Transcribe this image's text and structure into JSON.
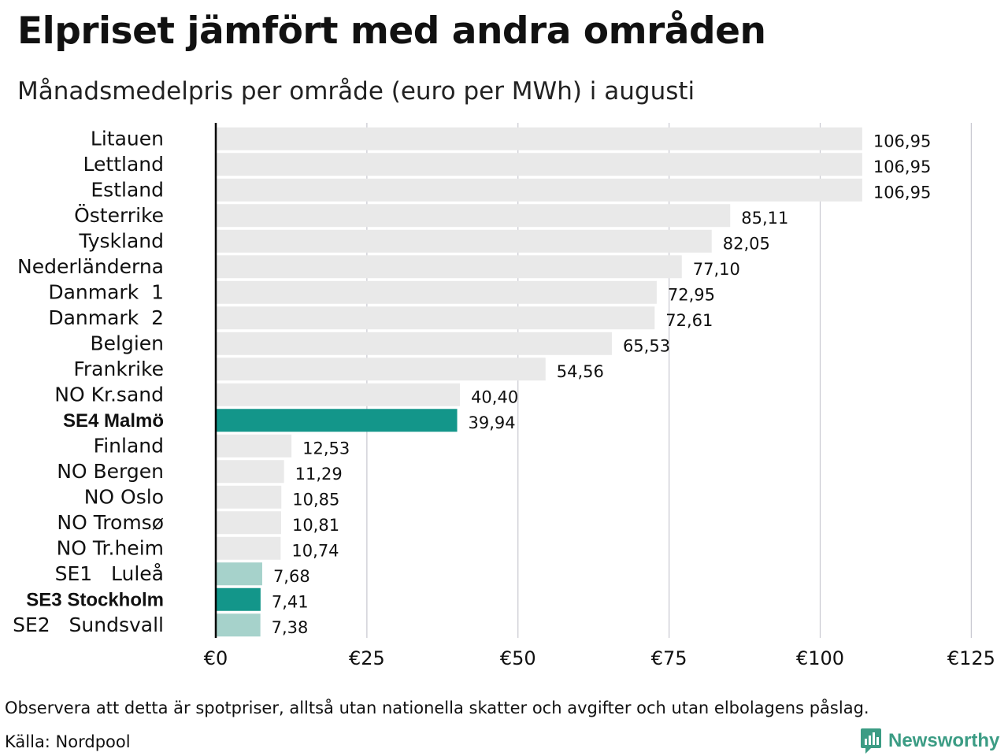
{
  "title": "Elpriset jämfört med andra områden",
  "subtitle": "Månadsmedelpris per område (euro per MWh) i augusti",
  "note": "Observera att detta är spotpriser, alltså utan nationella skatter och avgifter och utan elbolagens påslag.",
  "source": "Källa: Nordpool",
  "brand": {
    "name": "Newsworthy",
    "icon": "newsworthy-logo-icon",
    "color": "#3b9c84"
  },
  "colors": {
    "other": "#e9e9e9",
    "highlight": "#13968a",
    "se_light": "#a6d2cb",
    "grid": "#c8c8d0",
    "axis": "#000000"
  },
  "chart_data": {
    "type": "bar",
    "orientation": "horizontal",
    "categories": [
      "Litauen",
      "Lettland",
      "Estland",
      "Österrike",
      "Tyskland",
      "Nederländerna",
      "Danmark  1",
      "Danmark  2",
      "Belgien",
      "Frankrike",
      "NO Kr.sand",
      "SE4 Malmö",
      "Finland",
      "NO Bergen",
      "NO Oslo",
      "NO Tromsø",
      "NO Tr.heim",
      "SE1   Luleå",
      "SE3 Stockholm",
      "SE2   Sundsvall"
    ],
    "values": [
      106.95,
      106.95,
      106.95,
      85.11,
      82.05,
      77.1,
      72.95,
      72.61,
      65.53,
      54.56,
      40.4,
      39.94,
      12.53,
      11.29,
      10.85,
      10.81,
      10.74,
      7.68,
      7.41,
      7.38
    ],
    "value_labels": [
      "106,95",
      "106,95",
      "106,95",
      "85,11",
      "82,05",
      "77,10",
      "72,95",
      "72,61",
      "65,53",
      "54,56",
      "40,40",
      "39,94",
      "12,53",
      "11,29",
      "10,85",
      "10,81",
      "10,74",
      "7,68",
      "7,41",
      "7,38"
    ],
    "bar_colors": [
      "other",
      "other",
      "other",
      "other",
      "other",
      "other",
      "other",
      "other",
      "other",
      "other",
      "other",
      "highlight",
      "other",
      "other",
      "other",
      "other",
      "other",
      "se_light",
      "highlight",
      "se_light"
    ],
    "bold_categories": [
      "SE4 Malmö",
      "SE3 Stockholm"
    ],
    "x_ticks": [
      0,
      25,
      50,
      75,
      100,
      125
    ],
    "x_tick_labels": [
      "€0",
      "€25",
      "€50",
      "€75",
      "€100",
      "€125"
    ],
    "xlim": [
      0,
      125
    ],
    "grid": "vertical",
    "legend": "none"
  }
}
